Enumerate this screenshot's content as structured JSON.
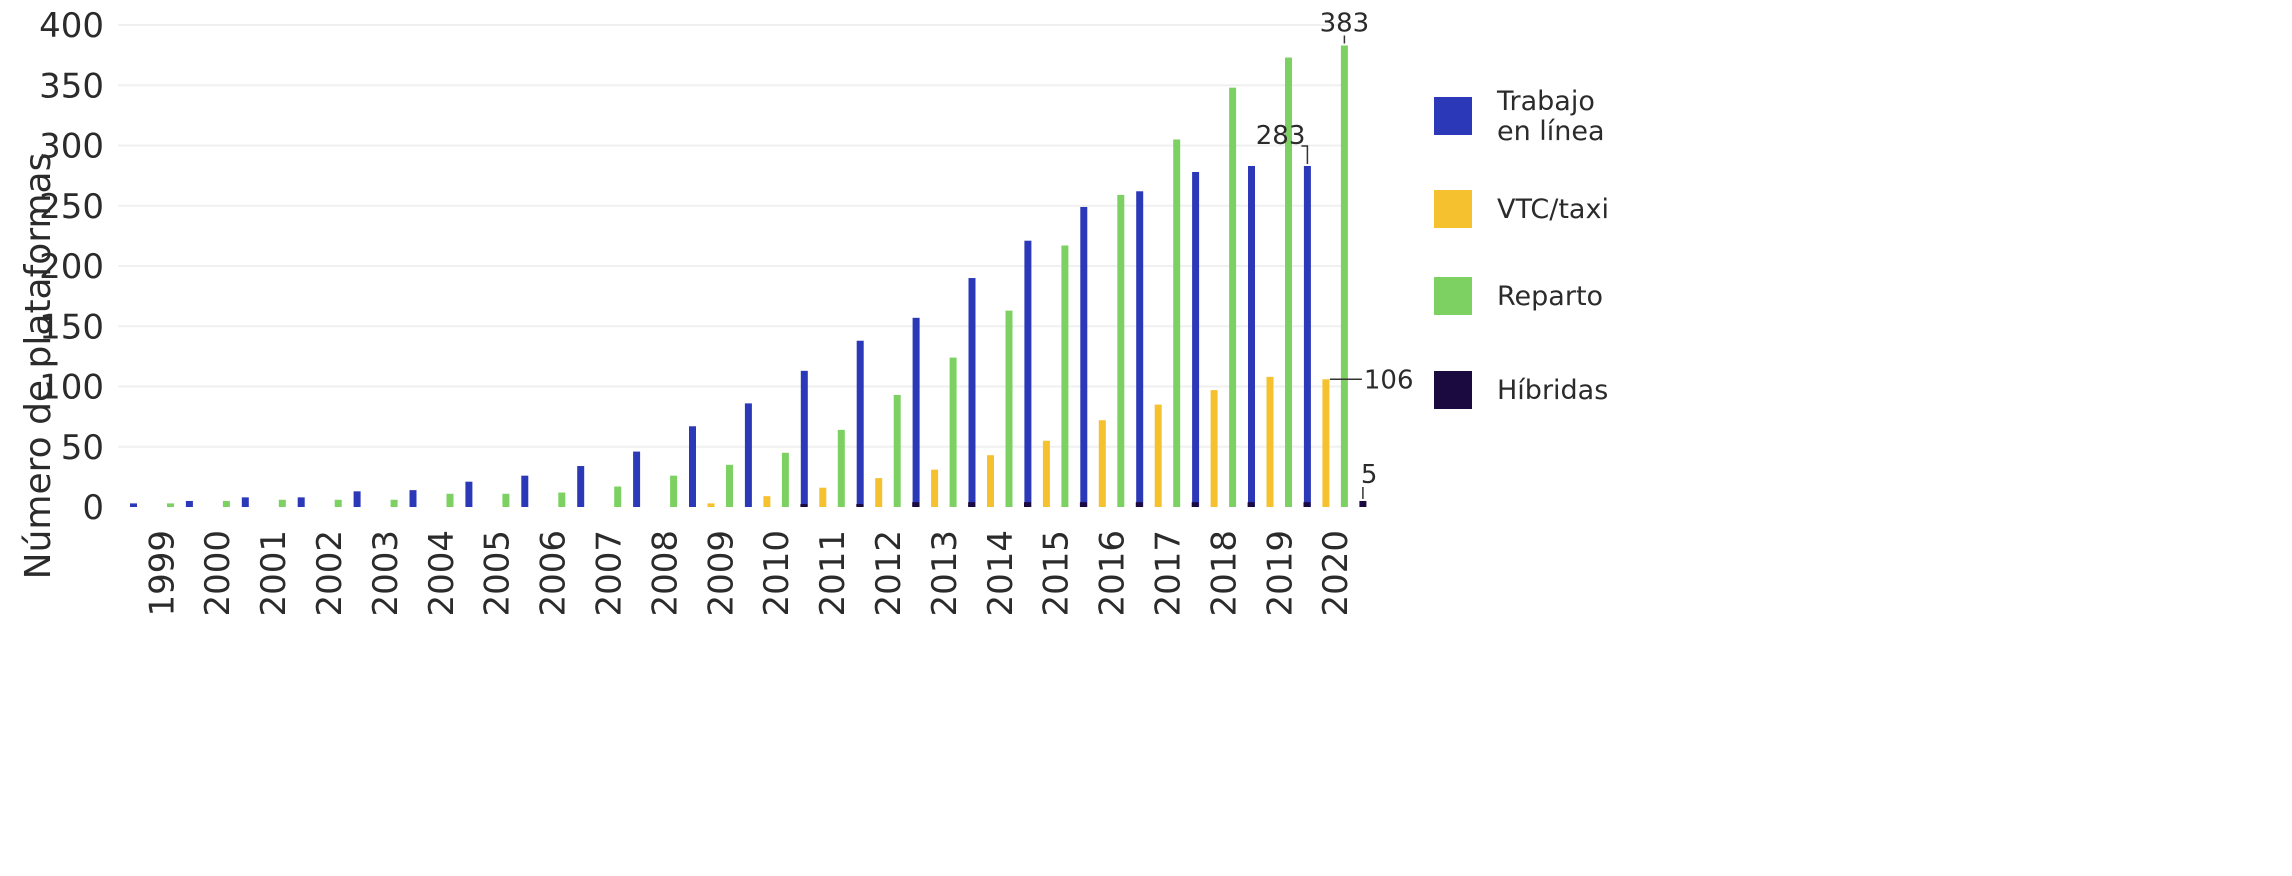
{
  "chart_data": {
    "type": "bar",
    "ylabel": "Número de plataformas",
    "xlabel": "",
    "ylim": [
      0,
      400
    ],
    "yticks": [
      "0",
      "50",
      "100",
      "150",
      "200",
      "250",
      "300",
      "350",
      "400"
    ],
    "grid": true,
    "legend_position": "right",
    "categories": [
      "1999",
      "2000",
      "2001",
      "2002",
      "2003",
      "2004",
      "2005",
      "2006",
      "2007",
      "2008",
      "2009",
      "2010",
      "2011",
      "2012",
      "2013",
      "2014",
      "2015",
      "2016",
      "2017",
      "2018",
      "2019",
      "2020"
    ],
    "series": [
      {
        "name": "Trabajo en línea",
        "legend_lines": [
          "Trabajo",
          "en línea"
        ],
        "color": "#2b39b8",
        "values": [
          3,
          5,
          8,
          8,
          13,
          14,
          21,
          26,
          34,
          46,
          67,
          86,
          113,
          138,
          157,
          190,
          221,
          249,
          262,
          278,
          283,
          283
        ]
      },
      {
        "name": "VTC/taxi",
        "legend_lines": [
          "VTC/taxi"
        ],
        "color": "#f6c12e",
        "values": [
          0,
          0,
          0,
          0,
          0,
          0,
          0,
          0,
          0,
          0,
          3,
          9,
          16,
          24,
          31,
          43,
          55,
          72,
          85,
          97,
          108,
          106
        ]
      },
      {
        "name": "Reparto",
        "legend_lines": [
          "Reparto"
        ],
        "color": "#7dd163",
        "values": [
          3,
          5,
          6,
          6,
          6,
          11,
          11,
          12,
          17,
          26,
          35,
          45,
          64,
          93,
          124,
          163,
          217,
          259,
          305,
          348,
          373,
          383
        ]
      },
      {
        "name": "Híbridas",
        "legend_lines": [
          "Híbridas"
        ],
        "color": "#1a0a3f",
        "values": [
          0,
          0,
          0,
          0,
          0,
          0,
          0,
          0,
          0,
          0,
          0,
          1,
          1,
          4,
          4,
          4,
          4,
          4,
          4,
          4,
          4,
          5
        ]
      }
    ],
    "annotations": [
      {
        "text": "383",
        "series": 2,
        "category": "2020"
      },
      {
        "text": "283",
        "series": 0,
        "category": "2020"
      },
      {
        "text": "106",
        "series": 1,
        "category": "2020"
      },
      {
        "text": "5",
        "series": 3,
        "category": "2020"
      }
    ]
  }
}
